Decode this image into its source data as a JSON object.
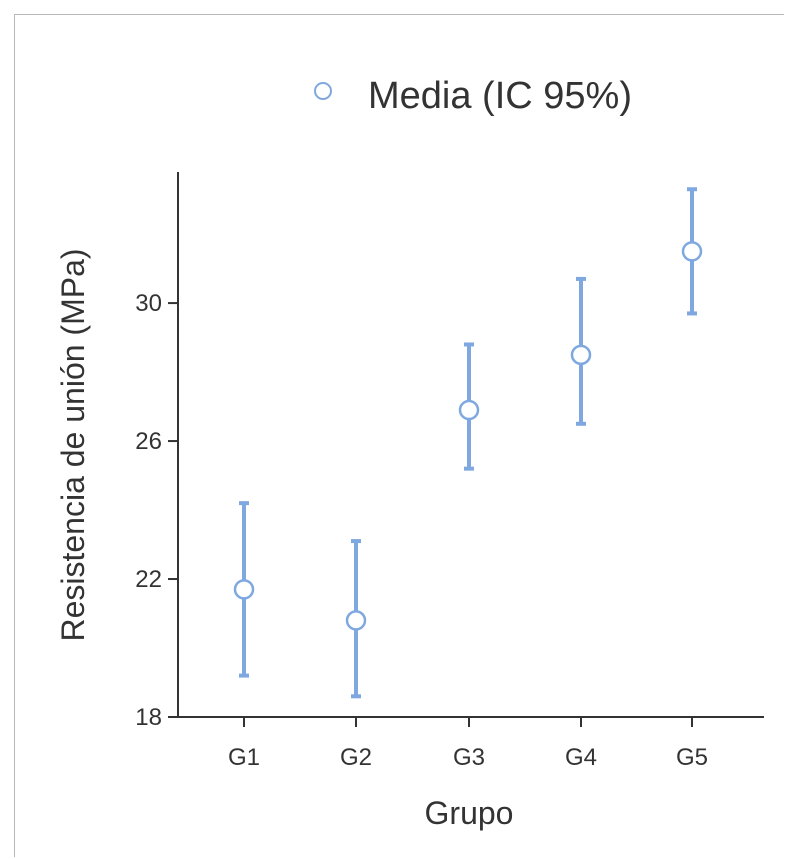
{
  "chart_data": {
    "type": "scatter",
    "subtype": "mean-with-95ci-error-bars",
    "legend": {
      "label": "Media (IC 95%)",
      "placement": "top-center"
    },
    "xlabel": "Grupo",
    "ylabel": "Resistencia de unión (MPa)",
    "categories": [
      "G1",
      "G2",
      "G3",
      "G4",
      "G5"
    ],
    "y_ticks": [
      "18",
      "22",
      "26",
      "30"
    ],
    "ylim": [
      18,
      33.8
    ],
    "grid": false,
    "series": [
      {
        "name": "Media (IC 95%)",
        "values": [
          21.7,
          20.8,
          26.9,
          28.5,
          31.5
        ],
        "ci_lower": [
          19.2,
          18.6,
          25.2,
          26.5,
          29.7
        ],
        "ci_upper": [
          24.2,
          23.1,
          28.8,
          30.7,
          33.3
        ]
      }
    ],
    "colors": {
      "marker_edge": "#7fa8e0",
      "error_bar": "#7fa8e0",
      "axis": "#333333",
      "text": "#333333"
    }
  }
}
